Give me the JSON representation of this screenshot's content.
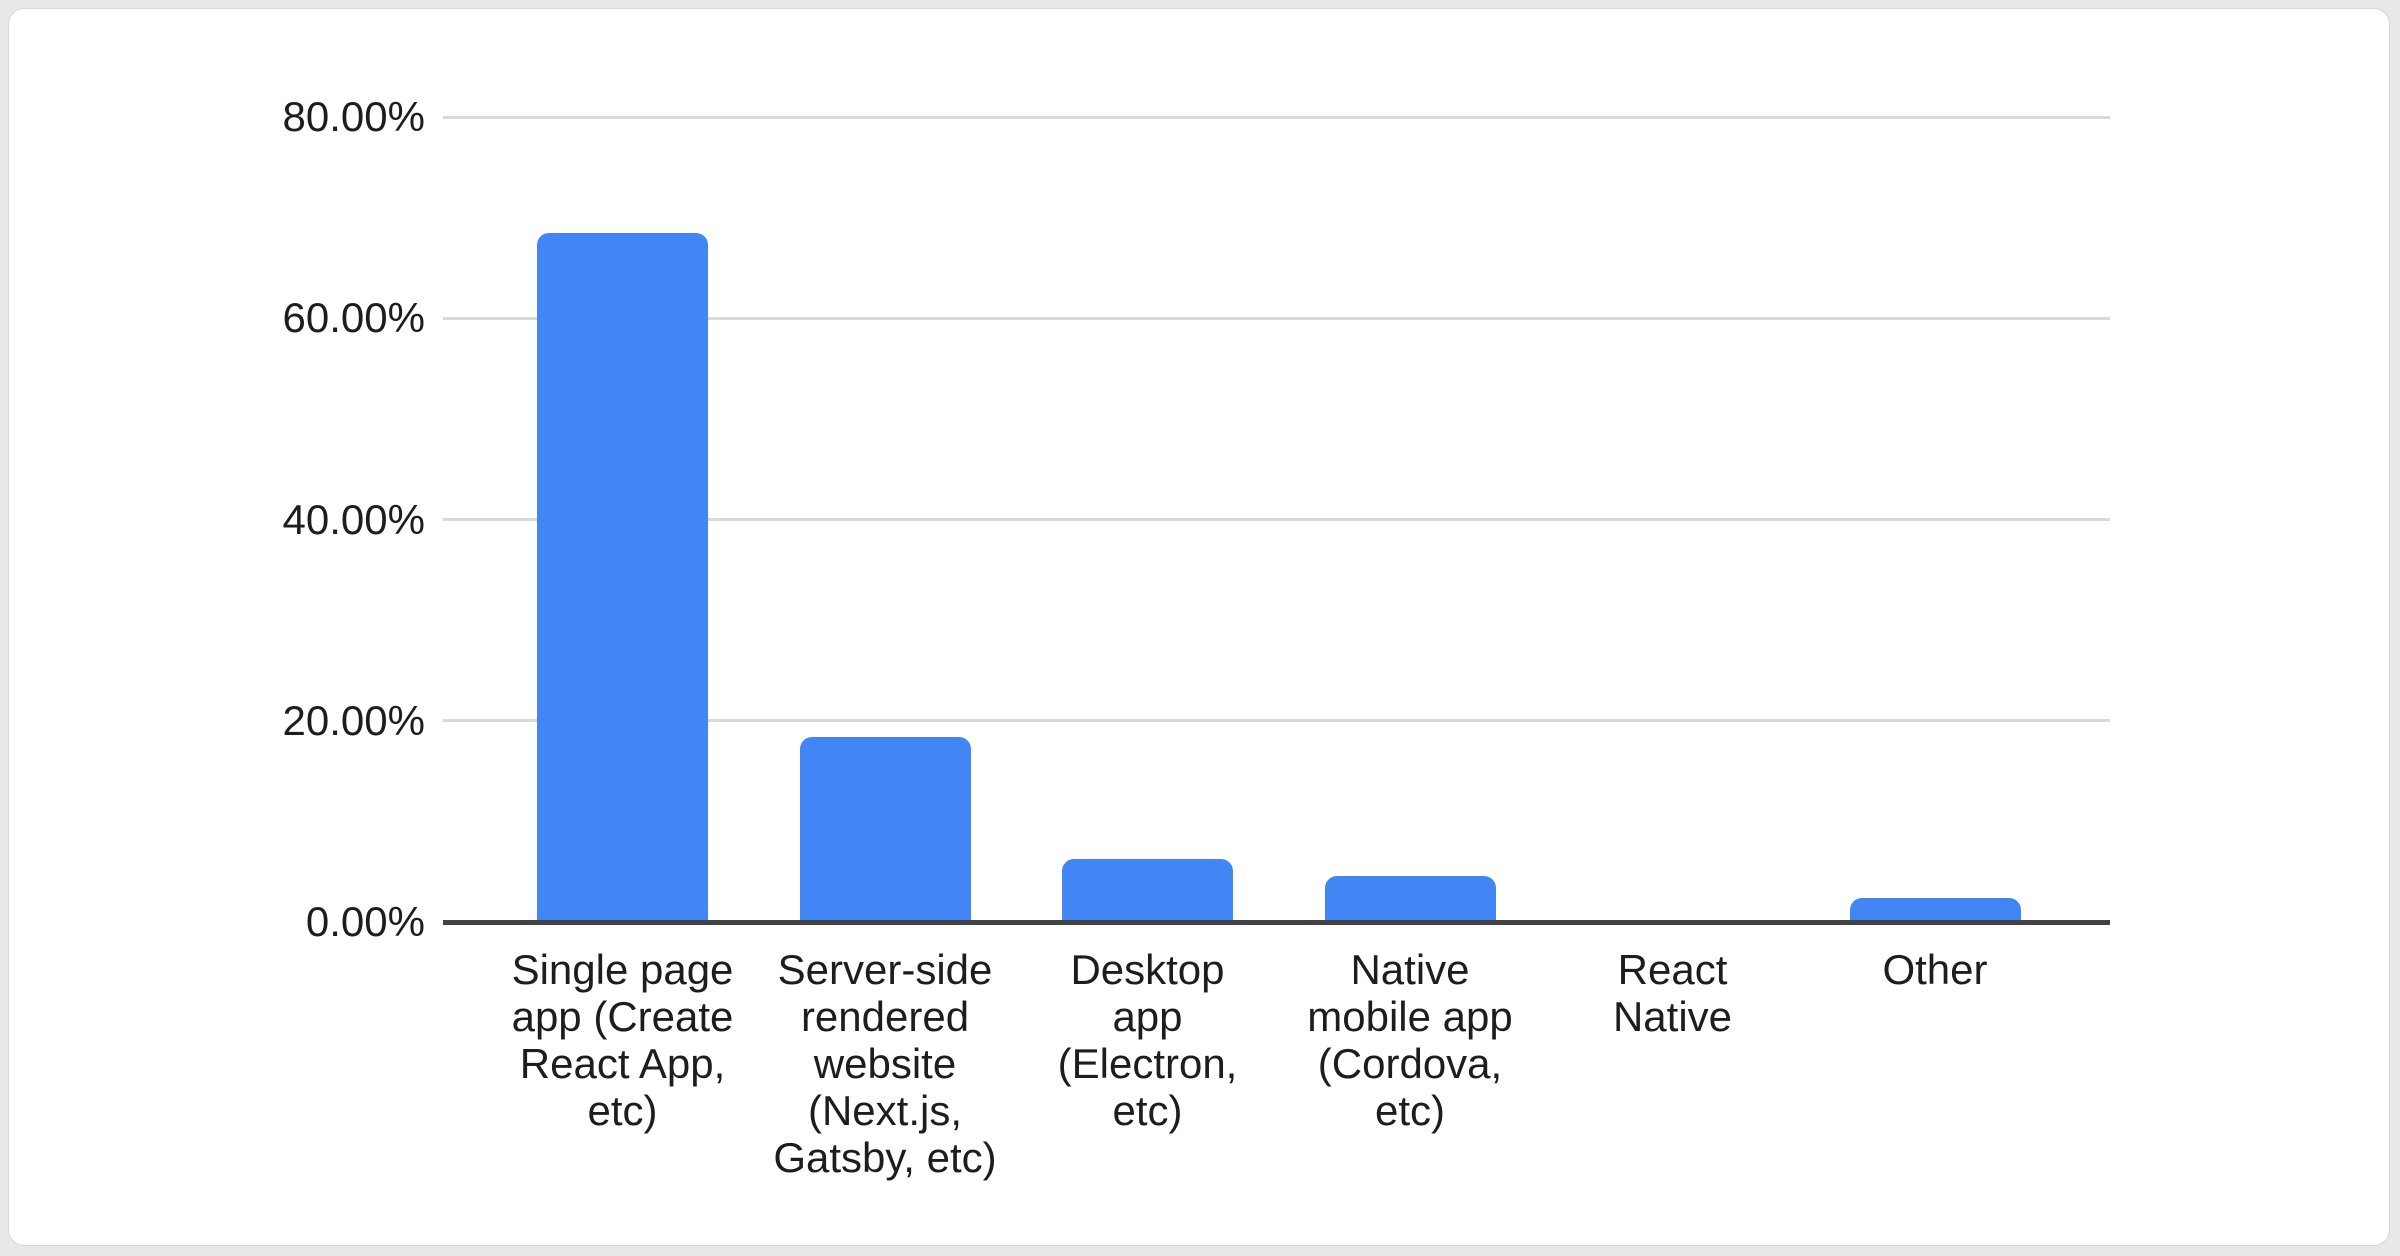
{
  "colors": {
    "page_background": "#e8e9eb",
    "card_background": "#ffffff",
    "card_border": "#d6d7da",
    "bar_color": "#4285f4",
    "gridline_color": "#d9d9d9",
    "axis_line_color": "#424242",
    "text_color": "#1d1d1d"
  },
  "chart_data": {
    "type": "bar",
    "title": "",
    "xlabel": "",
    "ylabel": "",
    "legend_position": "none",
    "grid": "horizontal",
    "bar_color": "#4285f4",
    "ylim": [
      0,
      80
    ],
    "yticks": [
      {
        "value": 80,
        "label": "80.00%"
      },
      {
        "value": 60,
        "label": "60.00%"
      },
      {
        "value": 40,
        "label": "40.00%"
      },
      {
        "value": 20,
        "label": "20.00%"
      },
      {
        "value": 0,
        "label": "0.00%"
      }
    ],
    "categories": [
      "Single page app (Create React App, etc)",
      "Server-side rendered website (Next.js, Gatsby, etc)",
      "Desktop app (Electron, etc)",
      "Native mobile app (Cordova, etc)",
      "React Native",
      "Other"
    ],
    "category_display": [
      "Single page\napp (Create\nReact App,\netc)",
      "Server-side\nrendered\nwebsite\n(Next.js,\nGatsby, etc)",
      "Desktop\napp\n(Electron,\netc)",
      "Native\nmobile app\n(Cordova,\netc)",
      "React\nNative",
      "Other"
    ],
    "values": [
      68.5,
      18.4,
      6.3,
      4.6,
      0,
      2.4
    ],
    "value_unit": "%"
  }
}
